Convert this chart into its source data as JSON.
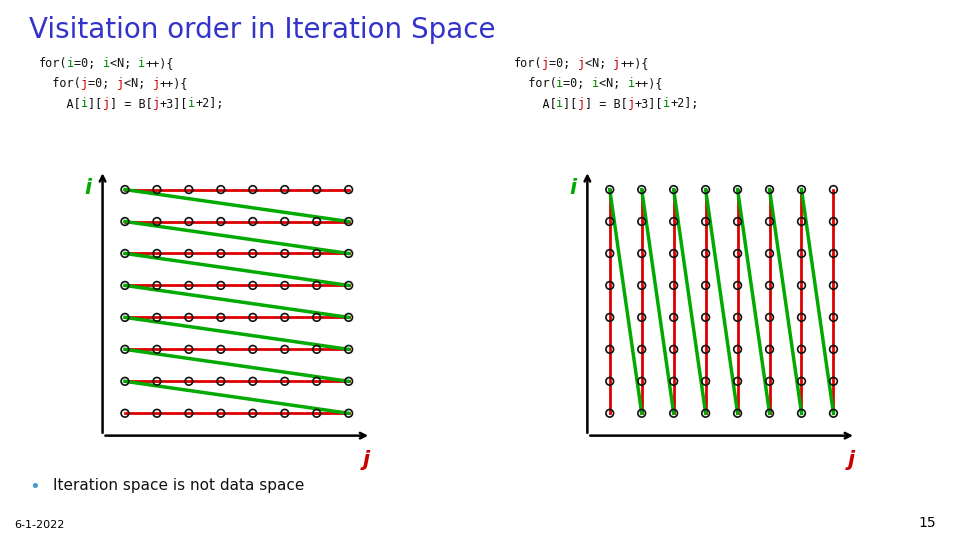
{
  "title": "Visitation order in Iteration Space",
  "title_color": "#3333cc",
  "title_fontsize": 20,
  "bg_color": "#ffffff",
  "grid_rows": 8,
  "grid_cols": 8,
  "red_color": "#dd0000",
  "green_color": "#00aa00",
  "bullet_text": "Iteration space is not data space",
  "bullet_color": "#4499cc",
  "date_text": "6-1-2022",
  "page_num": "15",
  "i_label_color": "#00aa00",
  "j_label_color": "#cc0000",
  "circle_color": "#111111",
  "code_black": "#111111",
  "code_green": "#008800",
  "code_red": "#cc0000"
}
